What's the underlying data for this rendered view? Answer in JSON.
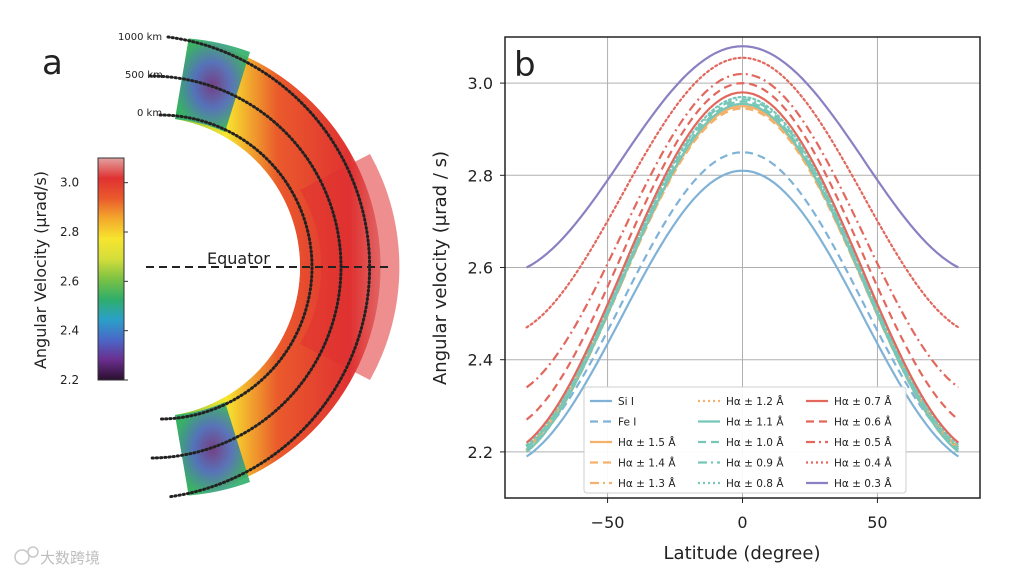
{
  "watermark": "大数跨境",
  "panel_a": {
    "letter": "a",
    "colorbar_label": "Angular Velocity (μrad/s)",
    "colorbar_ticks": [
      2.2,
      2.4,
      2.6,
      2.8,
      3.0
    ],
    "colorbar_range": [
      2.2,
      3.1
    ],
    "colorbar_colors": [
      "#2a0f2e",
      "#6a2e8e",
      "#4a68c8",
      "#2aa0c8",
      "#2fae6a",
      "#7cc243",
      "#d4dd3b",
      "#f7e52e",
      "#f3a92c",
      "#ea5a2c",
      "#e03232",
      "#e2a1a1"
    ],
    "height_labels": [
      "1000 km",
      "500 km",
      "0 km"
    ],
    "equator_label": "Equator"
  },
  "chart_data": {
    "type": "line",
    "panel_letter": "b",
    "title": "",
    "xlabel": "Latitude (degree)",
    "ylabel": "Angular velocity (μrad / s)",
    "xlim": [
      -88,
      88
    ],
    "ylim": [
      2.1,
      3.1
    ],
    "xticks": [
      -50,
      0,
      50
    ],
    "xtick_labels": [
      "−50",
      "0",
      "50"
    ],
    "yticks": [
      2.2,
      2.4,
      2.6,
      2.8,
      3.0
    ],
    "ytick_labels": [
      "2.2",
      "2.4",
      "2.6",
      "2.8",
      "3.0"
    ],
    "grid": true,
    "legend_position": "lower-center",
    "x_range": [
      -80,
      80
    ],
    "series": [
      {
        "name": "Si I",
        "color": "#7fb2d6",
        "dash": "solid",
        "peak": 2.81,
        "edge": 2.19
      },
      {
        "name": "Fe I",
        "color": "#7fb2d6",
        "dash": "dashed",
        "peak": 2.85,
        "edge": 2.21
      },
      {
        "name": "Hα ± 1.5 Å",
        "color": "#f3b16b",
        "dash": "solid",
        "peak": 2.95,
        "edge": 2.21
      },
      {
        "name": "Hα ± 1.4 Å",
        "color": "#f3b16b",
        "dash": "dashed",
        "peak": 2.945,
        "edge": 2.205
      },
      {
        "name": "Hα ± 1.3 Å",
        "color": "#f3b16b",
        "dash": "dashdot",
        "peak": 2.95,
        "edge": 2.2
      },
      {
        "name": "Hα ± 1.2 Å",
        "color": "#f3b16b",
        "dash": "dotted",
        "peak": 2.955,
        "edge": 2.205
      },
      {
        "name": "Hα ± 1.1 Å",
        "color": "#76c7b8",
        "dash": "solid",
        "peak": 2.955,
        "edge": 2.2
      },
      {
        "name": "Hα ± 1.0 Å",
        "color": "#76c7b8",
        "dash": "dashed",
        "peak": 2.96,
        "edge": 2.205
      },
      {
        "name": "Hα ± 0.9 Å",
        "color": "#76c7b8",
        "dash": "dashdot",
        "peak": 2.965,
        "edge": 2.21
      },
      {
        "name": "Hα ± 0.8 Å",
        "color": "#76c7b8",
        "dash": "dotted",
        "peak": 2.97,
        "edge": 2.215
      },
      {
        "name": "Hα ± 0.7 Å",
        "color": "#e2685e",
        "dash": "solid",
        "peak": 2.98,
        "edge": 2.22
      },
      {
        "name": "Hα ± 0.6 Å",
        "color": "#e2685e",
        "dash": "dashed",
        "peak": 3.0,
        "edge": 2.27
      },
      {
        "name": "Hα ± 0.5 Å",
        "color": "#e2685e",
        "dash": "dashdot",
        "peak": 3.02,
        "edge": 2.34
      },
      {
        "name": "Hα ± 0.4 Å",
        "color": "#e2685e",
        "dash": "dotted",
        "peak": 3.055,
        "edge": 2.47
      },
      {
        "name": "Hα ± 0.3 Å",
        "color": "#8a80c2",
        "dash": "solid",
        "peak": 3.08,
        "edge": 2.6
      }
    ]
  }
}
